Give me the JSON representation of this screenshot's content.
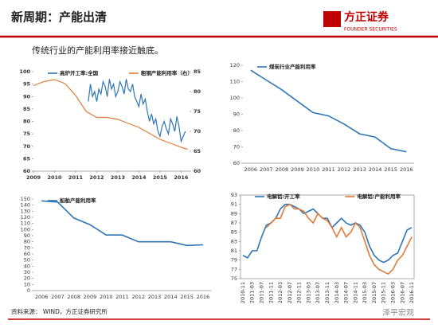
{
  "header": {
    "title": "新周期：产能出清",
    "logo": "方正证券",
    "logo_en": "FOUNDER SECURITIES"
  },
  "subtitle": "传统行业的产能利用率接近触底。",
  "source": "资料来源： WIND，方正证券研究所",
  "watermark": "泽平宏观",
  "chart_data": [
    {
      "type": "line",
      "xlim": [
        2009,
        2016.4
      ],
      "xticks": [
        2009,
        2010,
        2011,
        2012,
        2013,
        2014,
        2015,
        2016
      ],
      "ylim": [
        60,
        100
      ],
      "yticks": [
        60,
        65,
        70,
        75,
        80,
        85,
        90,
        95,
        100
      ],
      "y2lim": [
        60,
        85
      ],
      "y2ticks": [
        60,
        65,
        70,
        75,
        80,
        85
      ],
      "series": [
        {
          "name": "高炉开工率:全国",
          "color": "#2e75b6",
          "x": [
            2011.6,
            2011.7,
            2011.8,
            2011.9,
            2012.0,
            2012.1,
            2012.2,
            2012.3,
            2012.4,
            2012.5,
            2012.6,
            2012.7,
            2012.8,
            2012.9,
            2013.0,
            2013.1,
            2013.2,
            2013.3,
            2013.4,
            2013.5,
            2013.6,
            2013.7,
            2013.8,
            2013.9,
            2014.0,
            2014.1,
            2014.2,
            2014.3,
            2014.4,
            2014.5,
            2014.6,
            2014.7,
            2014.8,
            2014.9,
            2015.0,
            2015.1,
            2015.2,
            2015.3,
            2015.4,
            2015.5,
            2015.6,
            2015.7,
            2015.8,
            2015.9,
            2016.0,
            2016.1,
            2016.2
          ],
          "values": [
            88,
            95,
            90,
            92,
            88,
            93,
            91,
            96,
            94,
            90,
            97,
            93,
            95,
            90,
            92,
            96,
            94,
            91,
            97,
            93,
            92,
            95,
            90,
            88,
            86,
            91,
            87,
            89,
            84,
            80,
            83,
            79,
            81,
            76,
            74,
            78,
            80,
            77,
            75,
            81,
            79,
            76,
            82,
            78,
            72,
            74,
            76
          ]
        },
        {
          "name": "粗钢产能利用率（右）",
          "color": "#e07b39",
          "axis": "y2",
          "x": [
            2009,
            2009.5,
            2010,
            2010.5,
            2011,
            2011.5,
            2012,
            2012.5,
            2013,
            2013.5,
            2014,
            2014.5,
            2015,
            2015.5,
            2016,
            2016.3
          ],
          "values": [
            81.5,
            82.5,
            83,
            82,
            79,
            75,
            73.5,
            73.5,
            73,
            72,
            71,
            69.5,
            68,
            67,
            66,
            65.5
          ]
        }
      ]
    },
    {
      "type": "line",
      "categories": [
        "2006",
        "2007",
        "2008",
        "2009",
        "2010",
        "2011",
        "2012",
        "2013",
        "2014",
        "2015",
        "2016"
      ],
      "ylim": [
        60,
        120
      ],
      "yticks": [
        60,
        70,
        80,
        90,
        100,
        110,
        120
      ],
      "series": [
        {
          "name": "煤炭行业产能利用率",
          "color": "#2e75b6",
          "values": [
            117,
            111,
            105,
            98,
            91,
            89,
            84,
            78,
            76,
            69,
            67
          ]
        }
      ]
    },
    {
      "type": "line",
      "categories": [
        "2006",
        "2007",
        "2008",
        "2009",
        "2010",
        "2011",
        "2012",
        "2013",
        "2014",
        "2015",
        "2016"
      ],
      "ylim": [
        0,
        150
      ],
      "yticks": [
        0,
        10,
        20,
        30,
        40,
        50,
        60,
        70,
        80,
        90,
        100,
        110,
        120,
        130,
        140,
        150
      ],
      "series": [
        {
          "name": "船舶产能利用率",
          "color": "#2e75b6",
          "values": [
            147,
            145,
            119,
            108,
            91,
            91,
            80,
            80,
            80,
            74,
            75
          ]
        }
      ]
    },
    {
      "type": "line",
      "rotate_labels": true,
      "categories": [
        "2010-11",
        null,
        "2011-03",
        null,
        "2011-07",
        null,
        "2011-11",
        null,
        "2012-03",
        null,
        "2012-07",
        null,
        "2012-11",
        null,
        "2013-03",
        null,
        "2013-07",
        null,
        "2013-11",
        null,
        "2014-03",
        null,
        "2014-07",
        null,
        "2014-11",
        null,
        "2015-03",
        null,
        "2015-07",
        null,
        "2015-11",
        null,
        "2016-03",
        null,
        "2016-07",
        null,
        "2016-11"
      ],
      "ylim": [
        75,
        93
      ],
      "yticks": [
        75,
        77,
        79,
        81,
        83,
        85,
        87,
        89,
        91,
        93
      ],
      "series": [
        {
          "name": "电解铝:开工率",
          "color": "#2e75b6",
          "values": [
            80,
            79.5,
            81,
            81,
            84,
            86.5,
            87,
            88,
            90,
            91,
            91,
            90.5,
            90,
            89,
            89.5,
            90,
            89,
            88,
            88,
            86,
            87,
            88,
            87,
            86.5,
            87,
            86.5,
            85,
            82,
            80,
            79,
            78.5,
            79,
            80,
            80.5,
            83,
            85.5,
            86
          ]
        },
        {
          "name": "电解铝:产能利用率",
          "color": "#e07b39",
          "values": [
            null,
            null,
            null,
            null,
            null,
            86,
            87,
            88,
            88,
            90.5,
            91,
            90,
            90,
            89.5,
            88,
            87,
            89,
            88,
            87.5,
            86,
            84,
            86,
            84,
            85,
            87,
            86,
            83,
            80,
            78,
            77,
            76.5,
            76,
            77,
            79,
            80,
            82,
            84
          ]
        }
      ]
    }
  ]
}
